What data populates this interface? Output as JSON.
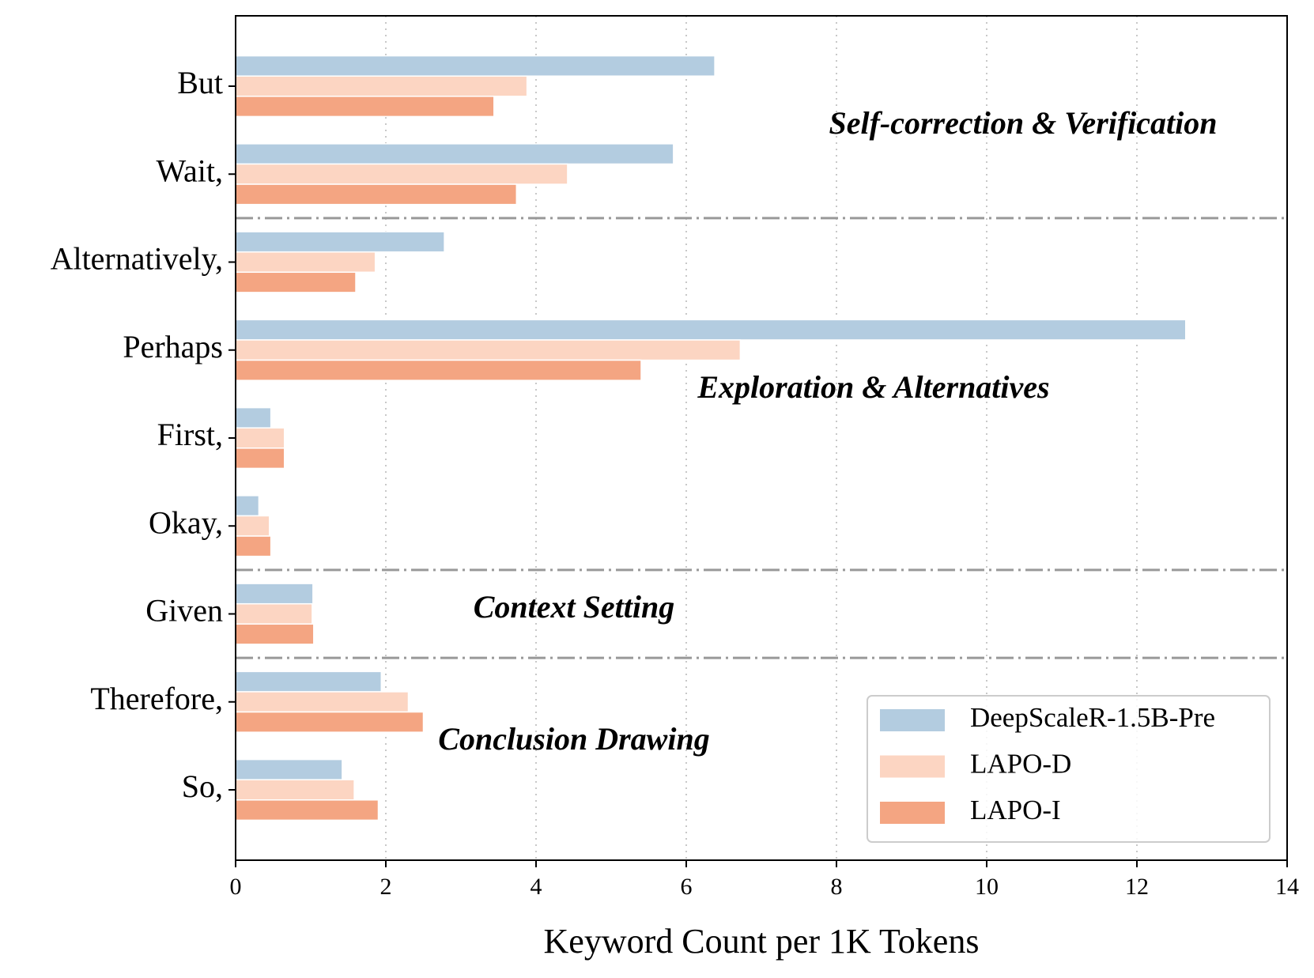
{
  "chart_data": {
    "type": "barh",
    "xlabel": "Keyword Count per 1K Tokens",
    "categories": [
      "But",
      "Wait,",
      "Alternatively,",
      "Perhaps",
      "First,",
      "Okay,",
      "Given",
      "Therefore,",
      "So,"
    ],
    "series": [
      {
        "name": "DeepScaleR-1.5B-Pre",
        "color": "#b3cce0",
        "values": [
          6.38,
          5.83,
          2.78,
          12.65,
          0.47,
          0.31,
          1.03,
          1.94,
          1.42
        ]
      },
      {
        "name": "LAPO-D",
        "color": "#fcd5c2",
        "values": [
          3.88,
          4.42,
          1.86,
          6.72,
          0.65,
          0.45,
          1.02,
          2.3,
          1.58
        ]
      },
      {
        "name": "LAPO-I",
        "color": "#f4a582",
        "values": [
          3.44,
          3.74,
          1.6,
          5.4,
          0.65,
          0.47,
          1.04,
          2.5,
          1.9
        ]
      }
    ],
    "annotations": [
      "Self-correction & Verification",
      "Exploration & Alternatives",
      "Context Setting",
      "Conclusion Drawing"
    ],
    "xlim": [
      0,
      14
    ],
    "xticks": [
      0,
      2,
      4,
      6,
      8,
      10,
      12,
      14
    ],
    "grid": true,
    "legend": "lower right"
  }
}
